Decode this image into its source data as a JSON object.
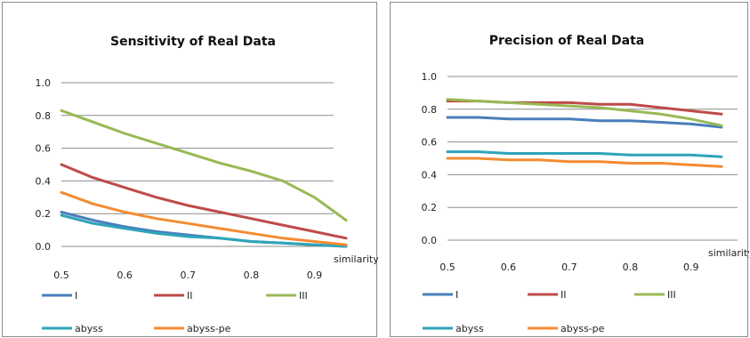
{
  "chart_data": [
    {
      "type": "line",
      "title": "Sensitivity of Real Data",
      "xlabel": "similarity",
      "ylabel": "",
      "x": [
        0.5,
        0.55,
        0.6,
        0.65,
        0.7,
        0.75,
        0.8,
        0.85,
        0.9,
        0.95
      ],
      "xticks": [
        "0.5",
        "0.6",
        "0.7",
        "0.8",
        "0.9"
      ],
      "yticks": [
        "0.0",
        "0.2",
        "0.4",
        "0.6",
        "0.8",
        "1.0"
      ],
      "xlim": [
        0.5,
        0.95
      ],
      "ylim": [
        0,
        1.0
      ],
      "grid": true,
      "legend": "bottom",
      "series": [
        {
          "name": "I",
          "color": "#4a7ebb",
          "values": [
            0.21,
            0.16,
            0.12,
            0.09,
            0.07,
            0.05,
            0.03,
            0.02,
            0.01,
            0.0
          ]
        },
        {
          "name": "II",
          "color": "#be4b48",
          "values": [
            0.5,
            0.42,
            0.36,
            0.3,
            0.25,
            0.21,
            0.17,
            0.13,
            0.09,
            0.05
          ]
        },
        {
          "name": "III",
          "color": "#98b954",
          "values": [
            0.83,
            0.76,
            0.69,
            0.63,
            0.57,
            0.51,
            0.46,
            0.4,
            0.3,
            0.16
          ]
        },
        {
          "name": "abyss",
          "color": "#2fa4b9",
          "values": [
            0.19,
            0.14,
            0.11,
            0.08,
            0.06,
            0.05,
            0.03,
            0.02,
            0.01,
            0.0
          ]
        },
        {
          "name": "abyss-pe",
          "color": "#f48b31",
          "values": [
            0.33,
            0.26,
            0.21,
            0.17,
            0.14,
            0.11,
            0.08,
            0.05,
            0.03,
            0.01
          ]
        }
      ]
    },
    {
      "type": "line",
      "title": "Precision of Real Data",
      "xlabel": "similarity",
      "ylabel": "",
      "x": [
        0.5,
        0.55,
        0.6,
        0.65,
        0.7,
        0.75,
        0.8,
        0.85,
        0.9,
        0.95
      ],
      "xticks": [
        "0.5",
        "0.6",
        "0.7",
        "0.8",
        "0.9"
      ],
      "yticks": [
        "0.0",
        "0.2",
        "0.4",
        "0.6",
        "0.8",
        "1.0"
      ],
      "xlim": [
        0.5,
        0.95
      ],
      "ylim": [
        0,
        1.0
      ],
      "grid": true,
      "legend": "bottom",
      "series": [
        {
          "name": "I",
          "color": "#4a7ebb",
          "values": [
            0.75,
            0.75,
            0.74,
            0.74,
            0.74,
            0.73,
            0.73,
            0.72,
            0.71,
            0.69
          ]
        },
        {
          "name": "II",
          "color": "#be4b48",
          "values": [
            0.85,
            0.85,
            0.84,
            0.84,
            0.84,
            0.83,
            0.83,
            0.81,
            0.79,
            0.77
          ]
        },
        {
          "name": "III",
          "color": "#98b954",
          "values": [
            0.86,
            0.85,
            0.84,
            0.83,
            0.82,
            0.81,
            0.79,
            0.77,
            0.74,
            0.7
          ]
        },
        {
          "name": "abyss",
          "color": "#2fa4b9",
          "values": [
            0.54,
            0.54,
            0.53,
            0.53,
            0.53,
            0.53,
            0.52,
            0.52,
            0.52,
            0.51
          ]
        },
        {
          "name": "abyss-pe",
          "color": "#f48b31",
          "values": [
            0.5,
            0.5,
            0.49,
            0.49,
            0.48,
            0.48,
            0.47,
            0.47,
            0.46,
            0.45
          ]
        }
      ]
    }
  ]
}
